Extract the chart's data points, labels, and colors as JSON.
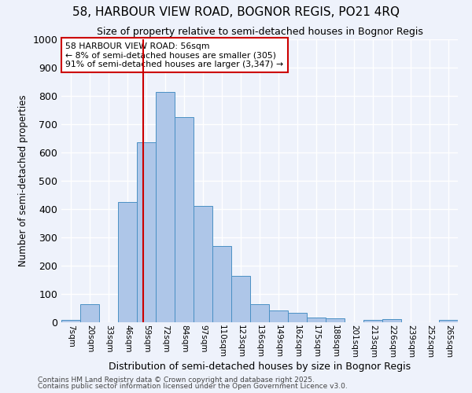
{
  "title": "58, HARBOUR VIEW ROAD, BOGNOR REGIS, PO21 4RQ",
  "subtitle": "Size of property relative to semi-detached houses in Bognor Regis",
  "xlabel": "Distribution of semi-detached houses by size in Bognor Regis",
  "ylabel": "Number of semi-detached properties",
  "categories": [
    "7sqm",
    "20sqm",
    "33sqm",
    "46sqm",
    "59sqm",
    "72sqm",
    "84sqm",
    "97sqm",
    "110sqm",
    "123sqm",
    "136sqm",
    "149sqm",
    "162sqm",
    "175sqm",
    "188sqm",
    "201sqm",
    "213sqm",
    "226sqm",
    "239sqm",
    "252sqm",
    "265sqm"
  ],
  "values": [
    7,
    63,
    0,
    425,
    635,
    815,
    725,
    410,
    270,
    165,
    63,
    42,
    33,
    18,
    15,
    0,
    8,
    10,
    0,
    0,
    7
  ],
  "bar_color": "#aec6e8",
  "bar_edge_color": "#4a90c4",
  "background_color": "#eef2fb",
  "grid_color": "#ffffff",
  "vline_color": "#cc0000",
  "vline_x_index": 3.85,
  "annotation_text": "58 HARBOUR VIEW ROAD: 56sqm\n← 8% of semi-detached houses are smaller (305)\n91% of semi-detached houses are larger (3,347) →",
  "annotation_box_color": "white",
  "annotation_box_edge_color": "#cc0000",
  "ylim": [
    0,
    1000
  ],
  "yticks": [
    0,
    100,
    200,
    300,
    400,
    500,
    600,
    700,
    800,
    900,
    1000
  ],
  "footnote1": "Contains HM Land Registry data © Crown copyright and database right 2025.",
  "footnote2": "Contains public sector information licensed under the Open Government Licence v3.0."
}
